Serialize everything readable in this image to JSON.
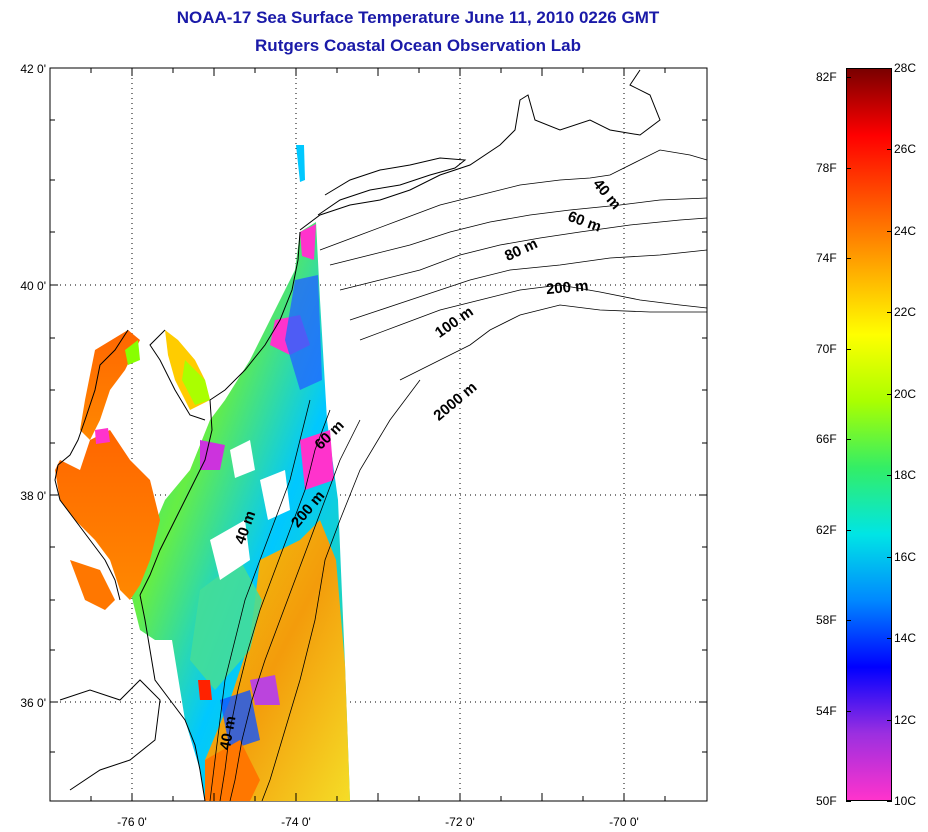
{
  "header": {
    "title": "NOAA-17 Sea Surface Temperature June 11, 2010 0226 GMT",
    "subtitle": "Rutgers Coastal Ocean Observation Lab"
  },
  "map": {
    "lon_range": [
      -77,
      -69
    ],
    "lat_range": [
      35,
      42
    ],
    "lon_ticks": [
      {
        "value": -76,
        "label": "-76 0'"
      },
      {
        "value": -74,
        "label": "-74 0'"
      },
      {
        "value": -72,
        "label": "-72 0'"
      },
      {
        "value": -70,
        "label": "-70 0'"
      }
    ],
    "lat_ticks": [
      {
        "value": 42,
        "label": "42 0'"
      },
      {
        "value": 40,
        "label": "40 0'"
      },
      {
        "value": 38,
        "label": "38 0'"
      },
      {
        "value": 36,
        "label": "36 0'"
      }
    ],
    "grid": true,
    "contour_labels": [
      "40 m",
      "60 m",
      "80 m",
      "200 m",
      "100 m",
      "2000 m",
      "60 m",
      "200 m",
      "40 m",
      "40 m"
    ]
  },
  "colorbar": {
    "celsius_labels": [
      "28C",
      "26C",
      "24C",
      "22C",
      "20C",
      "18C",
      "16C",
      "14C",
      "12C",
      "10C"
    ],
    "fahrenheit_labels": [
      "82F",
      "78F",
      "74F",
      "70F",
      "66F",
      "62F",
      "58F",
      "54F",
      "50F"
    ],
    "celsius_range": [
      10,
      28
    ],
    "fahrenheit_range": [
      50,
      82.4
    ],
    "colors": [
      "#ff33cc",
      "#9b2fe0",
      "#0000ff",
      "#0088ff",
      "#00e5e5",
      "#33ee66",
      "#aaff00",
      "#ffff00",
      "#ffaa00",
      "#ff5500",
      "#ff0000",
      "#7a0000"
    ]
  }
}
